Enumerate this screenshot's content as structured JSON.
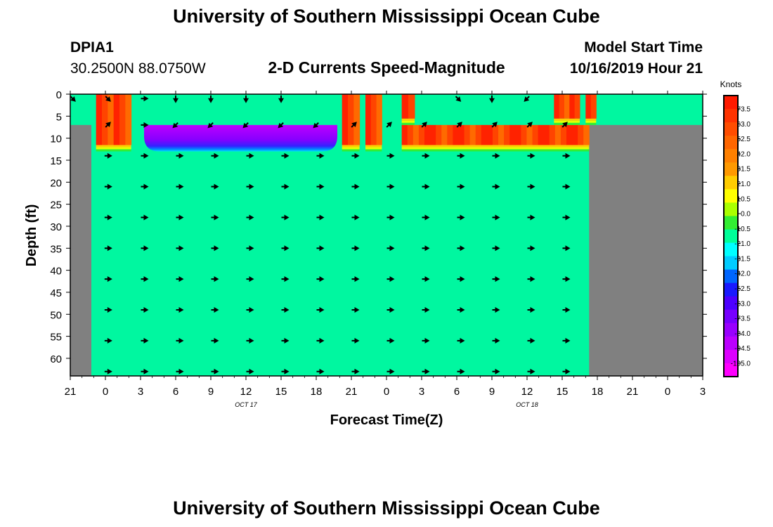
{
  "header": {
    "title": "University of Southern Mississippi Ocean Cube",
    "station": "DPIA1",
    "coords": "30.2500N 88.0750W",
    "subtitle": "2-D Currents Speed-Magnitude",
    "start_label": "Model Start Time",
    "start_time": "10/16/2019 Hour 21"
  },
  "footer": {
    "title": "University of Southern Mississippi Ocean Cube"
  },
  "chart_data": {
    "type": "heatmap",
    "title": "2-D Currents Speed-Magnitude",
    "xlabel": "Forecast Time(Z)",
    "ylabel": "Depth (ft)",
    "x_unit": "hours since 10/16/2019 21Z",
    "xlim": [
      0,
      54
    ],
    "ylim": [
      0,
      64
    ],
    "x_ticks": [
      {
        "x": 0,
        "label": "21"
      },
      {
        "x": 3,
        "label": "0"
      },
      {
        "x": 6,
        "label": "3"
      },
      {
        "x": 9,
        "label": "6"
      },
      {
        "x": 12,
        "label": "9"
      },
      {
        "x": 15,
        "label": "12"
      },
      {
        "x": 18,
        "label": "15"
      },
      {
        "x": 21,
        "label": "18"
      },
      {
        "x": 24,
        "label": "21"
      },
      {
        "x": 27,
        "label": "0"
      },
      {
        "x": 30,
        "label": "3"
      },
      {
        "x": 33,
        "label": "6"
      },
      {
        "x": 36,
        "label": "9"
      },
      {
        "x": 39,
        "label": "12"
      },
      {
        "x": 42,
        "label": "15"
      },
      {
        "x": 45,
        "label": "18"
      },
      {
        "x": 48,
        "label": "21"
      },
      {
        "x": 51,
        "label": "0"
      },
      {
        "x": 54,
        "label": "3"
      }
    ],
    "date_labels": [
      {
        "x": 15,
        "label": "OCT 17"
      },
      {
        "x": 39,
        "label": "OCT 18"
      }
    ],
    "y_ticks": [
      0,
      5,
      10,
      15,
      20,
      25,
      30,
      35,
      40,
      45,
      50,
      55,
      60
    ],
    "legend": {
      "title": "Knots",
      "placement": "right",
      "levels": [
        "73.5",
        "63.0",
        "52.5",
        "42.0",
        "31.5",
        "21.0",
        "10.5",
        "0.0",
        "-10.5",
        "-21.0",
        "-31.5",
        "-42.0",
        "-52.5",
        "-63.0",
        "-73.5",
        "-84.0",
        "-94.5",
        "-105.0"
      ],
      "colors": [
        "#ff1a00",
        "#ff3300",
        "#ff4d00",
        "#ff6600",
        "#ff8000",
        "#ff9900",
        "#ffcc00",
        "#ffff00",
        "#aaff00",
        "#33ee33",
        "#00ff99",
        "#00ffff",
        "#00ccff",
        "#0066ff",
        "#1a1aff",
        "#4d00ff",
        "#7700ff",
        "#9900ff",
        "#bb00ff",
        "#dd00ff",
        "#ff00ff"
      ]
    },
    "colors": {
      "background_field": "#00f7a0",
      "no_data": "#808080"
    },
    "no_data_regions": [
      {
        "x": [
          0,
          1.8
        ],
        "depth": [
          7,
          64
        ]
      },
      {
        "x": [
          44.3,
          54
        ],
        "depth": [
          7,
          64
        ]
      }
    ],
    "surface_bands": [
      {
        "x": [
          2.2,
          5.2
        ],
        "depth": [
          0,
          13
        ],
        "peak": 73.5
      },
      {
        "x": [
          23.2,
          24.7
        ],
        "depth": [
          0,
          13
        ],
        "peak": 73.5
      },
      {
        "x": [
          25.2,
          26.6
        ],
        "depth": [
          0,
          13
        ],
        "peak": 73.5
      },
      {
        "x": [
          28.3,
          44.3
        ],
        "depth": [
          7,
          13
        ],
        "peak": 73.5
      },
      {
        "x": [
          28.3,
          29.4
        ],
        "depth": [
          0,
          7
        ],
        "peak": 73.5
      },
      {
        "x": [
          41.3,
          43.5
        ],
        "depth": [
          0,
          7
        ],
        "peak": 73.5
      },
      {
        "x": [
          44.0,
          44.9
        ],
        "depth": [
          0,
          7
        ],
        "peak": 73.5
      }
    ],
    "negative_region": {
      "x": [
        6.3,
        22.8
      ],
      "depth": [
        7,
        13
      ],
      "min": -105.0
    },
    "vectors_surface": {
      "depth": 1,
      "x": [
        0.2,
        3.2,
        6.3,
        9.0,
        12.0,
        15.0,
        18.0,
        33.1,
        36.0,
        39.0
      ],
      "dir": [
        "se",
        "se",
        "e",
        "s",
        "s",
        "s",
        "s",
        "se",
        "s",
        "sw"
      ]
    },
    "vectors_band": {
      "depth": 7,
      "x": [
        3.2,
        6.3,
        9.0,
        12.0,
        15.0,
        18.0,
        21.0,
        24.2,
        27.2,
        30.2,
        33.2,
        36.2,
        39.2,
        42.2
      ],
      "dir": [
        "ne",
        "e",
        "sw",
        "sw",
        "sw",
        "sw",
        "sw",
        "ne",
        "ne",
        "ne",
        "ne",
        "ne",
        "ne",
        "ne"
      ]
    },
    "vectors_deep": {
      "x": [
        3.2,
        6.3,
        9.3,
        12.3,
        15.3,
        18.3,
        21.3,
        24.3,
        27.3,
        30.3,
        33.3,
        36.3,
        39.3,
        42.3
      ],
      "depths": [
        14,
        21,
        28,
        35,
        42,
        49,
        56,
        63
      ],
      "dir": "e"
    }
  }
}
